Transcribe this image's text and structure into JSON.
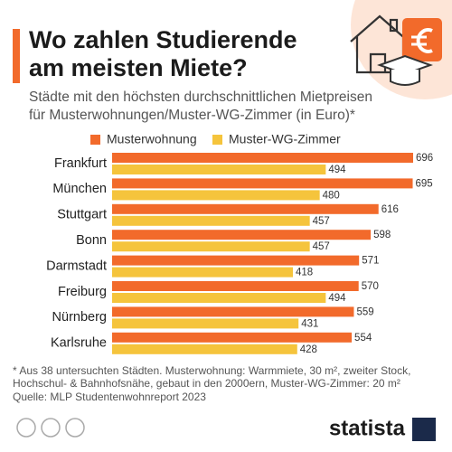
{
  "chart_data": {
    "type": "hbar",
    "title": [
      "Wo zahlen Studierende",
      "am meisten Miete?"
    ],
    "subtitle": [
      "Städte mit den höchsten durchschnittlichen Mietpreisen",
      "für Musterwohnungen/Muster-WG-Zimmer (in Euro)*"
    ],
    "categories": [
      "Frankfurt",
      "München",
      "Stuttgart",
      "Bonn",
      "Darmstadt",
      "Freiburg",
      "Nürnberg",
      "Karlsruhe"
    ],
    "series": [
      {
        "name": "Musterwohnung",
        "color": "#f26a2b",
        "values": [
          696,
          695,
          616,
          598,
          571,
          570,
          559,
          554
        ]
      },
      {
        "name": "Muster-WG-Zimmer",
        "color": "#f5c43c",
        "values": [
          494,
          480,
          457,
          457,
          418,
          494,
          431,
          428
        ]
      }
    ],
    "notes": [
      "* Aus 38 untersuchten Städten. Musterwohnung: Warmmiete, 30 m², zweiter Stock,",
      "Hochschul- & Bahnhofsnähe, gebaut in den 2000ern, Muster-WG-Zimmer: 20 m²"
    ],
    "source": "Quelle: MLP Studentenwohnreport 2023",
    "brand": "statista"
  }
}
